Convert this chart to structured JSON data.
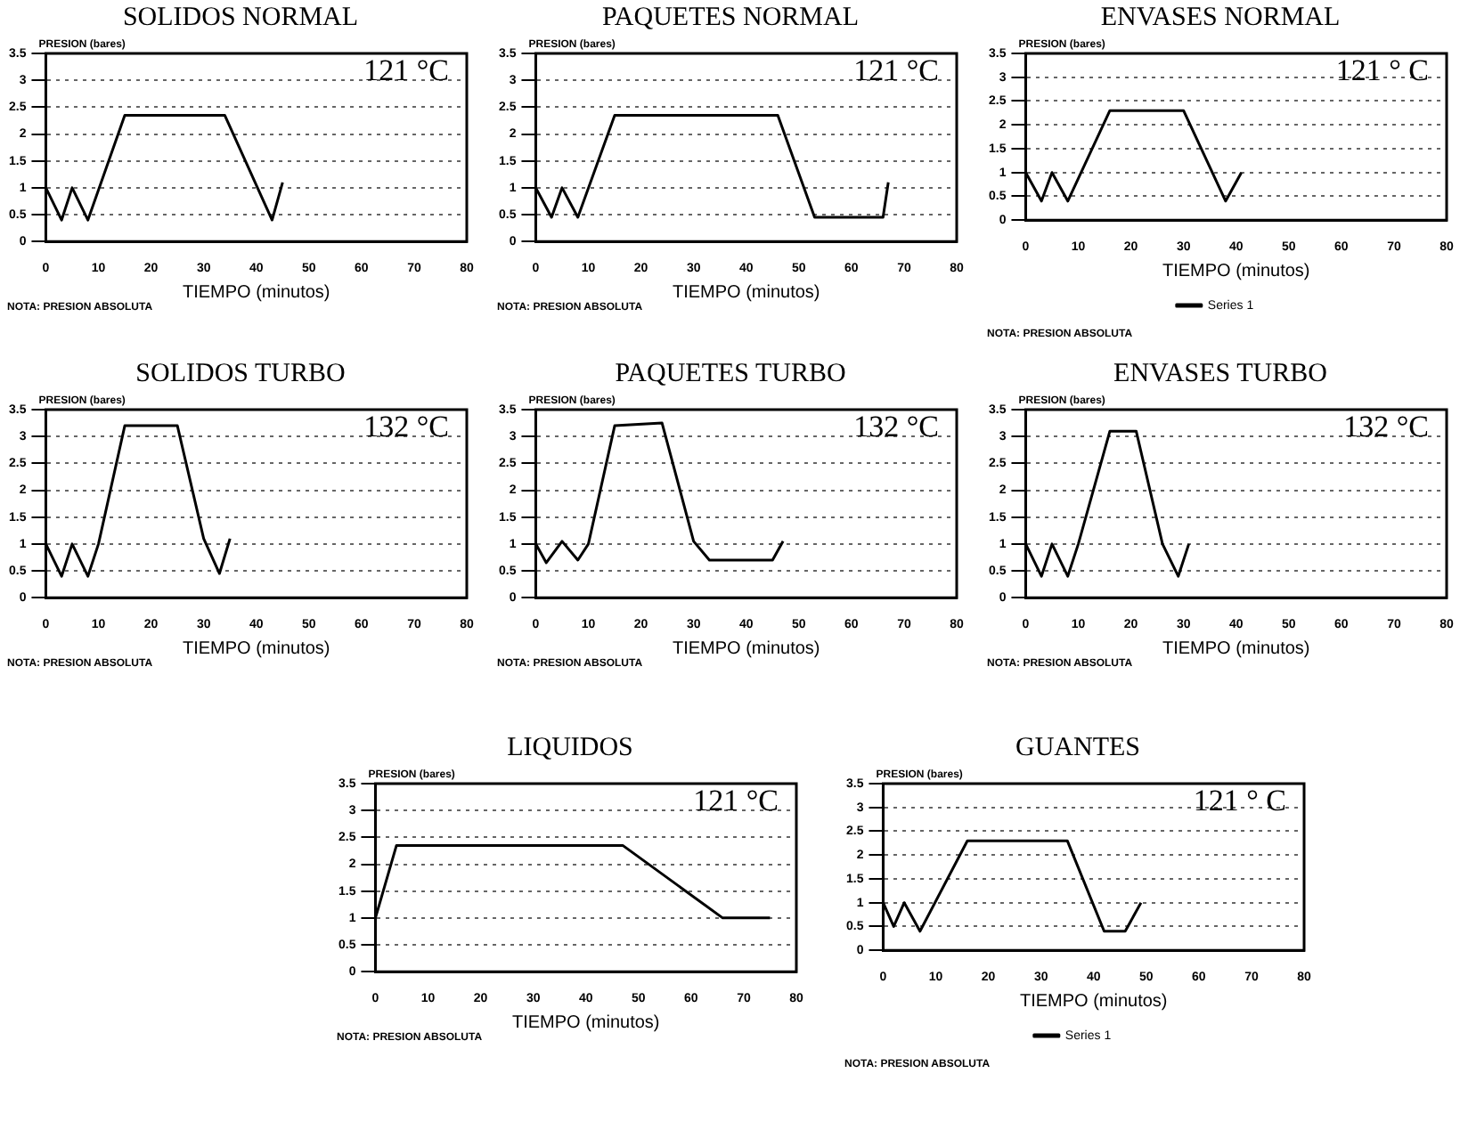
{
  "chart_data": [
    {
      "type": "line",
      "title": "SOLIDOS NORMAL",
      "xlabel": "TIEMPO (minutos)",
      "ylabel": "PRESION (bares)",
      "annotations": [
        "121 °C",
        "NOTA: PRESION ABSOLUTA"
      ],
      "xlim": [
        0,
        80
      ],
      "xticks": [
        0,
        10,
        20,
        30,
        40,
        50,
        60,
        70,
        80
      ],
      "ylim": [
        0,
        3.5
      ],
      "yticks": [
        0,
        0.5,
        1,
        1.5,
        2,
        2.5,
        3,
        3.5
      ],
      "grid": "y",
      "marker": "none",
      "legend": false,
      "series": [
        {
          "color": "#000000",
          "x": [
            0,
            3,
            5,
            8,
            15,
            34,
            43,
            45
          ],
          "values": [
            1,
            0.4,
            1,
            0.4,
            2.35,
            2.35,
            0.4,
            1.1
          ]
        }
      ]
    },
    {
      "type": "line",
      "title": "PAQUETES NORMAL",
      "xlabel": "TIEMPO (minutos)",
      "ylabel": "PRESION (bares)",
      "annotations": [
        "121 °C",
        "NOTA: PRESION ABSOLUTA"
      ],
      "xlim": [
        0,
        80
      ],
      "xticks": [
        0,
        10,
        20,
        30,
        40,
        50,
        60,
        70,
        80
      ],
      "ylim": [
        0,
        3.5
      ],
      "yticks": [
        0,
        0.5,
        1,
        1.5,
        2,
        2.5,
        3,
        3.5
      ],
      "grid": "y",
      "marker": "none",
      "legend": false,
      "series": [
        {
          "color": "#000000",
          "x": [
            0,
            3,
            5,
            8,
            15,
            46,
            53,
            66,
            67
          ],
          "values": [
            1,
            0.45,
            1,
            0.45,
            2.35,
            2.35,
            0.45,
            0.45,
            1.1
          ]
        }
      ]
    },
    {
      "type": "line",
      "title": "ENVASES NORMAL",
      "xlabel": "TIEMPO (minutos)",
      "ylabel": "PRESION (bares)",
      "annotations": [
        "121 ° C",
        "NOTA: PRESION ABSOLUTA"
      ],
      "xlim": [
        0,
        80
      ],
      "xticks": [
        0,
        10,
        20,
        30,
        40,
        50,
        60,
        70,
        80
      ],
      "ylim": [
        0,
        3.5
      ],
      "yticks": [
        0,
        0.5,
        1,
        1.5,
        2,
        2.5,
        3,
        3.5
      ],
      "grid": "y",
      "marker": "none",
      "legend": "bottom",
      "series": [
        {
          "name": "Series 1",
          "color": "#000000",
          "x": [
            0,
            3,
            5,
            8,
            16,
            30,
            38,
            41
          ],
          "values": [
            1,
            0.4,
            1,
            0.4,
            2.3,
            2.3,
            0.4,
            1
          ]
        }
      ]
    },
    {
      "type": "line",
      "title": "SOLIDOS TURBO",
      "xlabel": "TIEMPO (minutos)",
      "ylabel": "PRESION (bares)",
      "annotations": [
        "132 °C",
        "NOTA: PRESION ABSOLUTA"
      ],
      "xlim": [
        0,
        80
      ],
      "xticks": [
        0,
        10,
        20,
        30,
        40,
        50,
        60,
        70,
        80
      ],
      "ylim": [
        0,
        3.5
      ],
      "yticks": [
        0,
        0.5,
        1,
        1.5,
        2,
        2.5,
        3,
        3.5
      ],
      "grid": "y",
      "marker": "none",
      "legend": false,
      "series": [
        {
          "color": "#000000",
          "x": [
            0,
            3,
            5,
            8,
            10,
            15,
            25,
            30,
            33,
            35
          ],
          "values": [
            1,
            0.4,
            1,
            0.4,
            1,
            3.2,
            3.2,
            1.1,
            0.45,
            1.1
          ]
        }
      ]
    },
    {
      "type": "line",
      "title": "PAQUETES TURBO",
      "xlabel": "TIEMPO (minutos)",
      "ylabel": "PRESION (bares)",
      "annotations": [
        "132 °C",
        "NOTA: PRESION ABSOLUTA"
      ],
      "xlim": [
        0,
        80
      ],
      "xticks": [
        0,
        10,
        20,
        30,
        40,
        50,
        60,
        70,
        80
      ],
      "ylim": [
        0,
        3.5
      ],
      "yticks": [
        0,
        0.5,
        1,
        1.5,
        2,
        2.5,
        3,
        3.5
      ],
      "grid": "y",
      "marker": "none",
      "legend": false,
      "series": [
        {
          "color": "#000000",
          "x": [
            0,
            2,
            5,
            8,
            10,
            15,
            24,
            30,
            33,
            45,
            47
          ],
          "values": [
            1,
            0.65,
            1.05,
            0.7,
            1,
            3.2,
            3.25,
            1.05,
            0.7,
            0.7,
            1.05
          ]
        }
      ]
    },
    {
      "type": "line",
      "title": "ENVASES TURBO",
      "xlabel": "TIEMPO (minutos)",
      "ylabel": "PRESION (bares)",
      "annotations": [
        "132 °C",
        "NOTA: PRESION ABSOLUTA"
      ],
      "xlim": [
        0,
        80
      ],
      "xticks": [
        0,
        10,
        20,
        30,
        40,
        50,
        60,
        70,
        80
      ],
      "ylim": [
        0,
        3.5
      ],
      "yticks": [
        0,
        0.5,
        1,
        1.5,
        2,
        2.5,
        3,
        3.5
      ],
      "grid": "y",
      "marker": "none",
      "legend": false,
      "series": [
        {
          "color": "#000000",
          "x": [
            0,
            3,
            5,
            8,
            10,
            16,
            21,
            26,
            29,
            31
          ],
          "values": [
            1,
            0.4,
            1,
            0.4,
            1,
            3.1,
            3.1,
            1,
            0.4,
            1
          ]
        }
      ]
    },
    {
      "type": "line",
      "title": "LIQUIDOS",
      "xlabel": "TIEMPO (minutos)",
      "ylabel": "PRESION (bares)",
      "annotations": [
        "121 °C",
        "NOTA: PRESION ABSOLUTA"
      ],
      "xlim": [
        0,
        80
      ],
      "xticks": [
        0,
        10,
        20,
        30,
        40,
        50,
        60,
        70,
        80
      ],
      "ylim": [
        0,
        3.5
      ],
      "yticks": [
        0,
        0.5,
        1,
        1.5,
        2,
        2.5,
        3,
        3.5
      ],
      "grid": "y",
      "marker": "none",
      "legend": false,
      "series": [
        {
          "color": "#000000",
          "x": [
            0,
            4,
            47,
            66,
            75
          ],
          "values": [
            1,
            2.35,
            2.35,
            1,
            1
          ]
        }
      ]
    },
    {
      "type": "line",
      "title": "GUANTES",
      "xlabel": "TIEMPO (minutos)",
      "ylabel": "PRESION (bares)",
      "annotations": [
        "121 ° C",
        "NOTA: PRESION ABSOLUTA"
      ],
      "xlim": [
        0,
        80
      ],
      "xticks": [
        0,
        10,
        20,
        30,
        40,
        50,
        60,
        70,
        80
      ],
      "ylim": [
        0,
        3.5
      ],
      "yticks": [
        0,
        0.5,
        1,
        1.5,
        2,
        2.5,
        3,
        3.5
      ],
      "grid": "y",
      "marker": "none",
      "legend": "bottom",
      "series": [
        {
          "name": "Series 1",
          "color": "#000000",
          "x": [
            0,
            2,
            4,
            7,
            16,
            35,
            42,
            46,
            49
          ],
          "values": [
            1,
            0.5,
            1,
            0.4,
            2.3,
            2.3,
            0.4,
            0.4,
            1
          ]
        }
      ]
    }
  ]
}
